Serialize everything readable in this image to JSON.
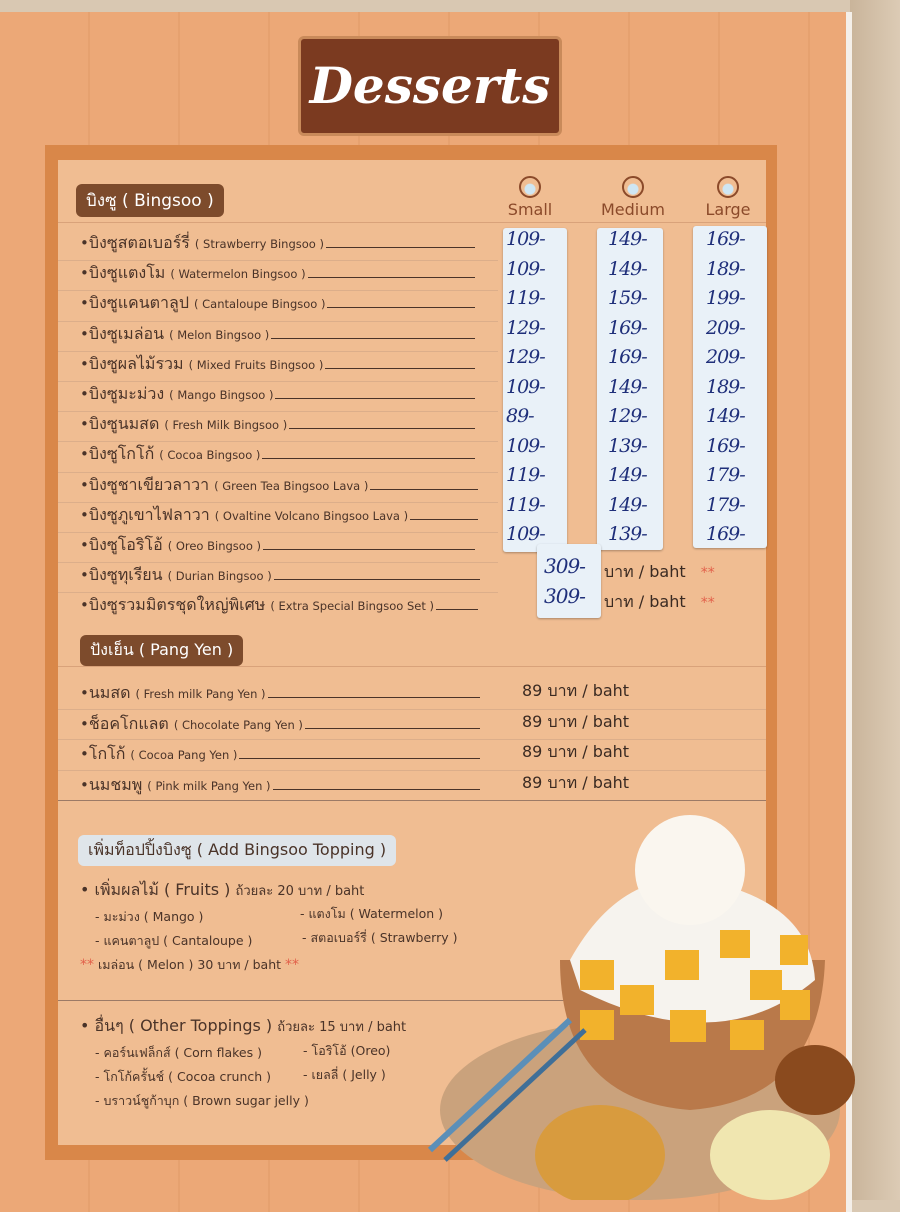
{
  "title": "Desserts",
  "bingsoo": {
    "heading": "บิงซู ( Bingsoo )",
    "sizes": [
      "Small",
      "Medium",
      "Large"
    ],
    "items": [
      {
        "th": "บิงซูสตอเบอร์รี่",
        "en": "( Strawberry Bingsoo )",
        "small": "109-",
        "medium": "149-",
        "large": "169-"
      },
      {
        "th": "บิงซูแตงโม",
        "en": "( Watermelon Bingsoo )",
        "small": "109-",
        "medium": "149-",
        "large": "189-"
      },
      {
        "th": "บิงซูแคนตาลูป",
        "en": "( Cantaloupe Bingsoo )",
        "small": "119-",
        "medium": "159-",
        "large": "199-"
      },
      {
        "th": "บิงซูเมล่อน",
        "en": "( Melon  Bingsoo )",
        "small": "129-",
        "medium": "169-",
        "large": "209-"
      },
      {
        "th": "บิงซูผลไม้รวม",
        "en": "( Mixed Fruits Bingsoo )",
        "small": "129-",
        "medium": "169-",
        "large": "209-"
      },
      {
        "th": "บิงซูมะม่วง",
        "en": "( Mango Bingsoo )",
        "small": "109-",
        "medium": "149-",
        "large": "189-"
      },
      {
        "th": "บิงซูนมสด",
        "en": "( Fresh Milk Bingsoo )",
        "small": "89-",
        "medium": "129-",
        "large": "149-"
      },
      {
        "th": "บิงซูโกโก้",
        "en": "( Cocoa Bingsoo )",
        "small": "109-",
        "medium": "139-",
        "large": "169-"
      },
      {
        "th": "บิงซูชาเขียวลาวา",
        "en": "( Green Tea Bingsoo Lava )",
        "small": "119-",
        "medium": "149-",
        "large": "179-"
      },
      {
        "th": "บิงซูภูเขาไฟลาวา",
        "en": "( Ovaltine Volcano Bingsoo Lava )",
        "small": "119-",
        "medium": "149-",
        "large": "179-"
      },
      {
        "th": "บิงซูโอริโอ้",
        "en": "( Oreo Bingsoo )",
        "small": "109-",
        "medium": "139-",
        "large": "169-"
      }
    ],
    "specials": [
      {
        "th": "บิงซูทุเรียน",
        "en": "( Durian Bingsoo )",
        "price": "309-",
        "unit": "บาท / baht",
        "mark": "**"
      },
      {
        "th": "บิงซูรวมมิตรชุดใหญ่พิเศษ",
        "en": "( Extra Special Bingsoo Set )",
        "price": "309-",
        "unit": "บาท / baht",
        "mark": "**"
      }
    ]
  },
  "pang_yen": {
    "heading": "ปังเย็น ( Pang Yen )",
    "items": [
      {
        "th": "นมสด",
        "en": "( Fresh milk Pang Yen )",
        "price": "89 บาท / baht"
      },
      {
        "th": "ช็อคโกแลต",
        "en": "( Chocolate Pang Yen )",
        "price": "89 บาท / baht"
      },
      {
        "th": "โกโก้",
        "en": "( Cocoa Pang Yen )",
        "price": "89 บาท / baht"
      },
      {
        "th": "นมชมพู",
        "en": "( Pink milk Pang Yen )",
        "price": "89 บาท / baht"
      }
    ]
  },
  "toppings": {
    "heading": "เพิ่มท็อปปิ้งบิงซู ( Add Bingsoo Topping )",
    "fruits": {
      "title": "เพิ่มผลไม้ ( Fruits )",
      "price": "ถ้วยละ 20 บาท / baht",
      "items": [
        "- มะม่วง ( Mango )",
        "- แตงโม ( Watermelon )",
        "- แคนตาลูป ( Cantaloupe )",
        "- สตอเบอร์รี่ ( Strawberry )"
      ],
      "note": "เมล่อน ( Melon ) 30 บาท / baht",
      "mark": "**"
    },
    "other": {
      "title": "อื่นๆ ( Other Toppings )",
      "price": "ถ้วยละ 15 บาท / baht",
      "items": [
        "- คอร์นเฟล็กส์ ( Corn flakes )",
        "- โอริโอ้ (Oreo)",
        "- โกโก้ครั้นช์ ( Cocoa crunch )",
        "- เยลลี่ ( Jelly )",
        "- บราวน์ชูก้าบุก ( Brown sugar jelly )"
      ]
    }
  },
  "colors": {
    "header": "#7b3a20",
    "panel": "#f0bd92",
    "border": "#d98749",
    "ink": "#1f2f7a"
  }
}
